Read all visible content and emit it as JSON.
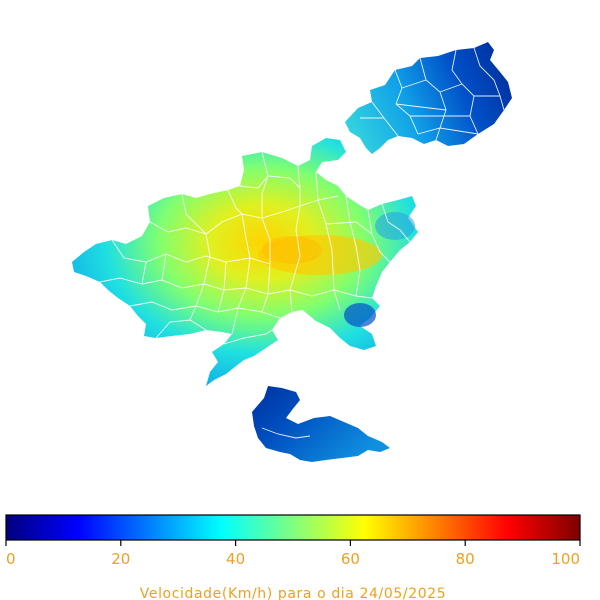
{
  "map": {
    "variable": "Velocidade(Km/h)",
    "caption": "Velocidade(Km/h) para o dia 24/05/2025",
    "date": "24/05/2025",
    "colormap": "jet",
    "regions": [
      {
        "id": "north-east-island",
        "typical_value": 12
      },
      {
        "id": "main-mainland",
        "typical_value": 58
      },
      {
        "id": "south-island",
        "typical_value": 15
      }
    ]
  },
  "colorbar": {
    "min": 0,
    "max": 100,
    "ticks": [
      "0",
      "20",
      "40",
      "60",
      "80",
      "100"
    ],
    "label": "Velocidade(Km/h) para o dia 24/05/2025",
    "label_color": "#f0a020",
    "stops": [
      "#00007f",
      "#0000ff",
      "#007fff",
      "#00ffff",
      "#7fff7f",
      "#ffff00",
      "#ff7f00",
      "#ff0000",
      "#7f0000"
    ]
  }
}
